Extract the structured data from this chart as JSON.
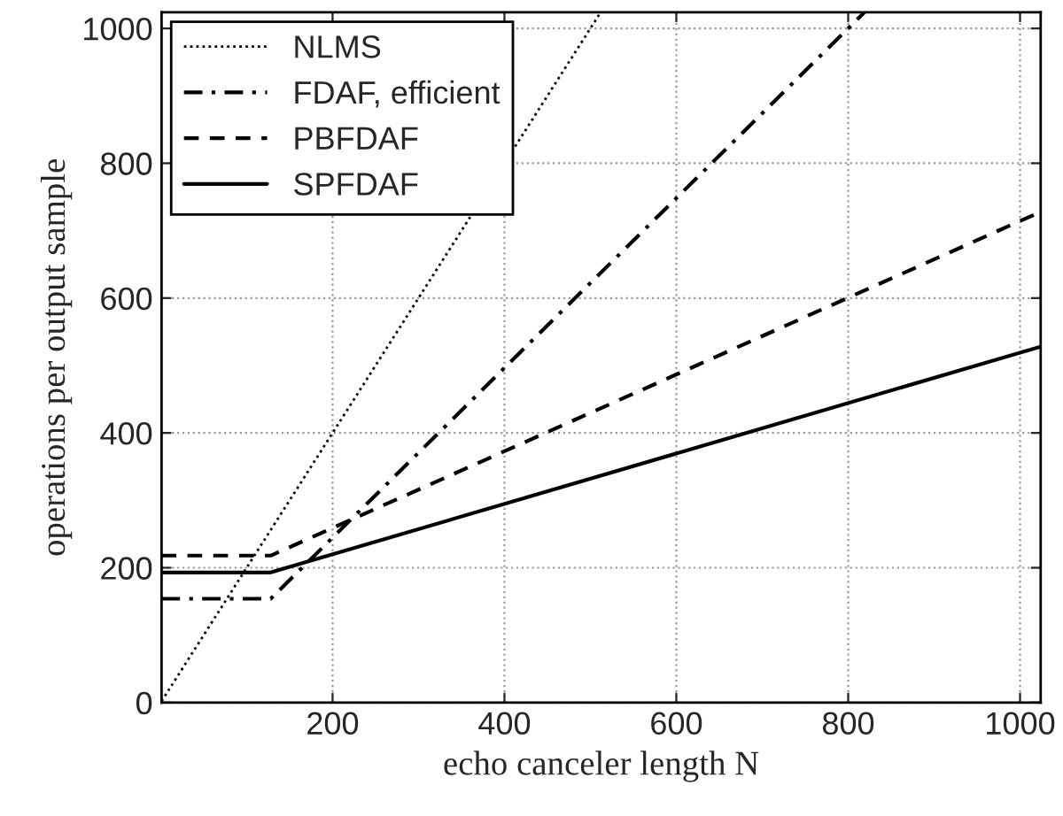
{
  "chart_data": {
    "type": "line",
    "xlabel": "echo canceler length N",
    "ylabel": "operations per output sample",
    "xlim": [
      1,
      1024
    ],
    "ylim": [
      0,
      1024
    ],
    "xticks": [
      200,
      400,
      600,
      800,
      1000
    ],
    "yticks": [
      0,
      200,
      400,
      600,
      800,
      1000
    ],
    "grid": true,
    "legend": "top left",
    "marker": "none",
    "series": [
      {
        "name": "NLMS",
        "color": "#000000",
        "line_style": "dotted",
        "x": [
          1,
          512
        ],
        "values": [
          2,
          1024
        ]
      },
      {
        "name": "FDAF, efficient",
        "color": "#000000",
        "line_style": "dashdot",
        "x": [
          1,
          128,
          819
        ],
        "values": [
          154,
          154,
          1024
        ]
      },
      {
        "name": "PBFDAF",
        "color": "#000000",
        "line_style": "dashed",
        "x": [
          1,
          128,
          1024
        ],
        "values": [
          218,
          218,
          728
        ]
      },
      {
        "name": "SPFDAF",
        "color": "#000000",
        "line_style": "solid",
        "x": [
          1,
          128,
          1024
        ],
        "values": [
          193,
          193,
          528
        ]
      }
    ]
  }
}
